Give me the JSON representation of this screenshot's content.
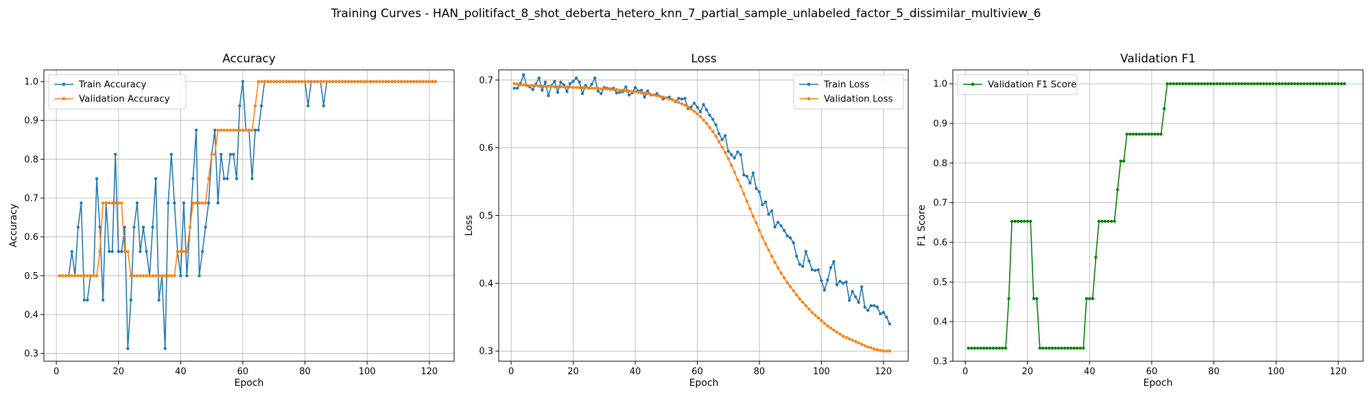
{
  "suptitle": "Training Curves - HAN_politifact_8_shot_deberta_hetero_knn_7_partial_sample_unlabeled_factor_5_dissimilar_multiview_6",
  "colors": {
    "train": "#1f77b4",
    "validation": "#ff7f0e",
    "f1": "#008000",
    "grid": "#b0b0b0"
  },
  "chart_data": [
    {
      "type": "line",
      "title": "Accuracy",
      "xlabel": "Epoch",
      "ylabel": "Accuracy",
      "xlim": [
        -4,
        128
      ],
      "ylim": [
        0.28,
        1.03
      ],
      "xticks": [
        0,
        20,
        40,
        60,
        80,
        100,
        120
      ],
      "yticks": [
        0.3,
        0.4,
        0.5,
        0.6,
        0.7,
        0.8,
        0.9,
        1.0
      ],
      "ytick_labels": [
        "0.3",
        "0.4",
        "0.5",
        "0.6",
        "0.7",
        "0.8",
        "0.9",
        "1.0"
      ],
      "grid": true,
      "legend_position": "upper-left",
      "series": [
        {
          "name": "Train Accuracy",
          "color": "#1f77b4",
          "x_start": 1,
          "values": [
            0.5,
            0.5,
            0.5,
            0.5,
            0.5625,
            0.5,
            0.625,
            0.6875,
            0.4375,
            0.4375,
            0.5,
            0.5,
            0.75,
            0.625,
            0.4375,
            0.6875,
            0.5625,
            0.5625,
            0.8125,
            0.5625,
            0.5625,
            0.625,
            0.3125,
            0.4375,
            0.625,
            0.6875,
            0.5625,
            0.625,
            0.5625,
            0.5,
            0.625,
            0.75,
            0.4375,
            0.5,
            0.3125,
            0.6875,
            0.8125,
            0.6875,
            0.5625,
            0.5,
            0.6875,
            0.5,
            0.625,
            0.75,
            0.875,
            0.5,
            0.5625,
            0.625,
            0.6875,
            0.8125,
            0.875,
            0.6875,
            0.8125,
            0.75,
            0.75,
            0.8125,
            0.8125,
            0.75,
            0.9375,
            1.0,
            0.875,
            0.875,
            0.75,
            0.875,
            0.875,
            0.9375,
            1.0,
            1.0,
            1.0,
            1.0,
            1.0,
            1.0,
            1.0,
            1.0,
            1.0,
            1.0,
            1.0,
            1.0,
            1.0,
            1.0,
            0.9375,
            1.0,
            1.0,
            1.0,
            1.0,
            0.9375,
            1.0,
            1.0,
            1.0,
            1.0,
            1.0,
            1.0,
            1.0,
            1.0,
            1.0,
            1.0,
            1.0,
            1.0,
            1.0,
            1.0,
            1.0,
            1.0,
            1.0,
            1.0,
            1.0,
            1.0,
            1.0,
            1.0,
            1.0,
            1.0,
            1.0,
            1.0,
            1.0,
            1.0,
            1.0,
            1.0,
            1.0,
            1.0,
            1.0,
            1.0,
            1.0,
            1.0
          ]
        },
        {
          "name": "Validation Accuracy",
          "color": "#ff7f0e",
          "x_start": 1,
          "values": [
            0.5,
            0.5,
            0.5,
            0.5,
            0.5,
            0.5,
            0.5,
            0.5,
            0.5,
            0.5,
            0.5,
            0.5,
            0.5,
            0.5625,
            0.6875,
            0.6875,
            0.6875,
            0.6875,
            0.6875,
            0.6875,
            0.6875,
            0.5625,
            0.5625,
            0.5,
            0.5,
            0.5,
            0.5,
            0.5,
            0.5,
            0.5,
            0.5,
            0.5,
            0.5,
            0.5,
            0.5,
            0.5,
            0.5,
            0.5,
            0.5625,
            0.5625,
            0.5625,
            0.5625,
            0.625,
            0.6875,
            0.6875,
            0.6875,
            0.6875,
            0.6875,
            0.75,
            0.8125,
            0.8125,
            0.875,
            0.875,
            0.875,
            0.875,
            0.875,
            0.875,
            0.875,
            0.875,
            0.875,
            0.875,
            0.875,
            0.875,
            0.9375,
            1.0,
            1.0,
            1.0,
            1.0,
            1.0,
            1.0,
            1.0,
            1.0,
            1.0,
            1.0,
            1.0,
            1.0,
            1.0,
            1.0,
            1.0,
            1.0,
            1.0,
            1.0,
            1.0,
            1.0,
            1.0,
            1.0,
            1.0,
            1.0,
            1.0,
            1.0,
            1.0,
            1.0,
            1.0,
            1.0,
            1.0,
            1.0,
            1.0,
            1.0,
            1.0,
            1.0,
            1.0,
            1.0,
            1.0,
            1.0,
            1.0,
            1.0,
            1.0,
            1.0,
            1.0,
            1.0,
            1.0,
            1.0,
            1.0,
            1.0,
            1.0,
            1.0,
            1.0,
            1.0,
            1.0,
            1.0,
            1.0,
            1.0
          ]
        }
      ]
    },
    {
      "type": "line",
      "title": "Loss",
      "xlabel": "Epoch",
      "ylabel": "Loss",
      "xlim": [
        -4,
        128
      ],
      "ylim": [
        0.285,
        0.715
      ],
      "xticks": [
        0,
        20,
        40,
        60,
        80,
        100,
        120
      ],
      "yticks": [
        0.3,
        0.4,
        0.5,
        0.6,
        0.7
      ],
      "ytick_labels": [
        "0.3",
        "0.4",
        "0.5",
        "0.6",
        "0.7"
      ],
      "grid": true,
      "legend_position": "upper-right",
      "series": [
        {
          "name": "Train Loss",
          "color": "#1f77b4",
          "x_start": 1,
          "values": [
            0.688,
            0.688,
            0.695,
            0.708,
            0.692,
            0.69,
            0.686,
            0.694,
            0.703,
            0.685,
            0.697,
            0.677,
            0.692,
            0.698,
            0.682,
            0.697,
            0.693,
            0.683,
            0.695,
            0.698,
            0.703,
            0.697,
            0.68,
            0.692,
            0.688,
            0.694,
            0.703,
            0.684,
            0.68,
            0.689,
            0.688,
            0.687,
            0.688,
            0.681,
            0.682,
            0.683,
            0.69,
            0.678,
            0.681,
            0.689,
            0.684,
            0.685,
            0.675,
            0.684,
            0.678,
            0.678,
            0.68,
            0.676,
            0.672,
            0.674,
            0.675,
            0.671,
            0.668,
            0.673,
            0.672,
            0.673,
            0.658,
            0.66,
            0.666,
            0.66,
            0.653,
            0.664,
            0.656,
            0.648,
            0.642,
            0.634,
            0.621,
            0.612,
            0.618,
            0.595,
            0.59,
            0.585,
            0.594,
            0.59,
            0.56,
            0.558,
            0.548,
            0.563,
            0.54,
            0.535,
            0.516,
            0.52,
            0.502,
            0.507,
            0.483,
            0.49,
            0.485,
            0.478,
            0.47,
            0.467,
            0.46,
            0.44,
            0.428,
            0.425,
            0.447,
            0.433,
            0.42,
            0.419,
            0.42,
            0.404,
            0.39,
            0.405,
            0.423,
            0.432,
            0.398,
            0.403,
            0.4,
            0.402,
            0.375,
            0.388,
            0.38,
            0.372,
            0.395,
            0.365,
            0.36,
            0.367,
            0.367,
            0.365,
            0.355,
            0.357,
            0.35,
            0.34
          ]
        },
        {
          "name": "Validation Loss",
          "color": "#ff7f0e",
          "x_start": 1,
          "values": [
            0.695,
            0.694,
            0.693,
            0.693,
            0.692,
            0.692,
            0.692,
            0.692,
            0.691,
            0.691,
            0.691,
            0.691,
            0.691,
            0.69,
            0.69,
            0.69,
            0.69,
            0.69,
            0.69,
            0.689,
            0.689,
            0.689,
            0.689,
            0.689,
            0.688,
            0.688,
            0.688,
            0.688,
            0.687,
            0.687,
            0.687,
            0.686,
            0.686,
            0.686,
            0.685,
            0.685,
            0.684,
            0.684,
            0.683,
            0.683,
            0.682,
            0.681,
            0.681,
            0.68,
            0.679,
            0.678,
            0.677,
            0.676,
            0.675,
            0.674,
            0.672,
            0.671,
            0.669,
            0.667,
            0.665,
            0.663,
            0.66,
            0.657,
            0.654,
            0.65,
            0.646,
            0.641,
            0.636,
            0.63,
            0.624,
            0.617,
            0.609,
            0.601,
            0.593,
            0.584,
            0.574,
            0.564,
            0.553,
            0.543,
            0.532,
            0.521,
            0.51,
            0.499,
            0.489,
            0.478,
            0.468,
            0.458,
            0.449,
            0.44,
            0.431,
            0.423,
            0.415,
            0.408,
            0.401,
            0.395,
            0.389,
            0.383,
            0.377,
            0.372,
            0.367,
            0.362,
            0.357,
            0.353,
            0.349,
            0.345,
            0.341,
            0.337,
            0.334,
            0.331,
            0.328,
            0.325,
            0.322,
            0.32,
            0.318,
            0.316,
            0.314,
            0.312,
            0.31,
            0.308,
            0.306,
            0.305,
            0.303,
            0.302,
            0.301,
            0.3,
            0.3,
            0.3
          ]
        }
      ]
    },
    {
      "type": "line",
      "title": "Validation F1",
      "xlabel": "Epoch",
      "ylabel": "F1 Score",
      "xlim": [
        -4,
        128
      ],
      "ylim": [
        0.3,
        1.035
      ],
      "xticks": [
        0,
        20,
        40,
        60,
        80,
        100,
        120
      ],
      "yticks": [
        0.3,
        0.4,
        0.5,
        0.6,
        0.7,
        0.8,
        0.9,
        1.0
      ],
      "ytick_labels": [
        "0.3",
        "0.4",
        "0.5",
        "0.6",
        "0.7",
        "0.8",
        "0.9",
        "1.0"
      ],
      "grid": true,
      "legend_position": "upper-left",
      "series": [
        {
          "name": "Validation F1 Score",
          "color": "#008000",
          "x_start": 1,
          "values": [
            0.333,
            0.333,
            0.333,
            0.333,
            0.333,
            0.333,
            0.333,
            0.333,
            0.333,
            0.333,
            0.333,
            0.333,
            0.333,
            0.458,
            0.653,
            0.653,
            0.653,
            0.653,
            0.653,
            0.653,
            0.653,
            0.458,
            0.458,
            0.333,
            0.333,
            0.333,
            0.333,
            0.333,
            0.333,
            0.333,
            0.333,
            0.333,
            0.333,
            0.333,
            0.333,
            0.333,
            0.333,
            0.333,
            0.458,
            0.458,
            0.458,
            0.562,
            0.653,
            0.653,
            0.653,
            0.653,
            0.653,
            0.653,
            0.733,
            0.805,
            0.805,
            0.873,
            0.873,
            0.873,
            0.873,
            0.873,
            0.873,
            0.873,
            0.873,
            0.873,
            0.873,
            0.873,
            0.873,
            0.937,
            1.0,
            1.0,
            1.0,
            1.0,
            1.0,
            1.0,
            1.0,
            1.0,
            1.0,
            1.0,
            1.0,
            1.0,
            1.0,
            1.0,
            1.0,
            1.0,
            1.0,
            1.0,
            1.0,
            1.0,
            1.0,
            1.0,
            1.0,
            1.0,
            1.0,
            1.0,
            1.0,
            1.0,
            1.0,
            1.0,
            1.0,
            1.0,
            1.0,
            1.0,
            1.0,
            1.0,
            1.0,
            1.0,
            1.0,
            1.0,
            1.0,
            1.0,
            1.0,
            1.0,
            1.0,
            1.0,
            1.0,
            1.0,
            1.0,
            1.0,
            1.0,
            1.0,
            1.0,
            1.0,
            1.0,
            1.0,
            1.0,
            1.0
          ]
        }
      ]
    }
  ]
}
